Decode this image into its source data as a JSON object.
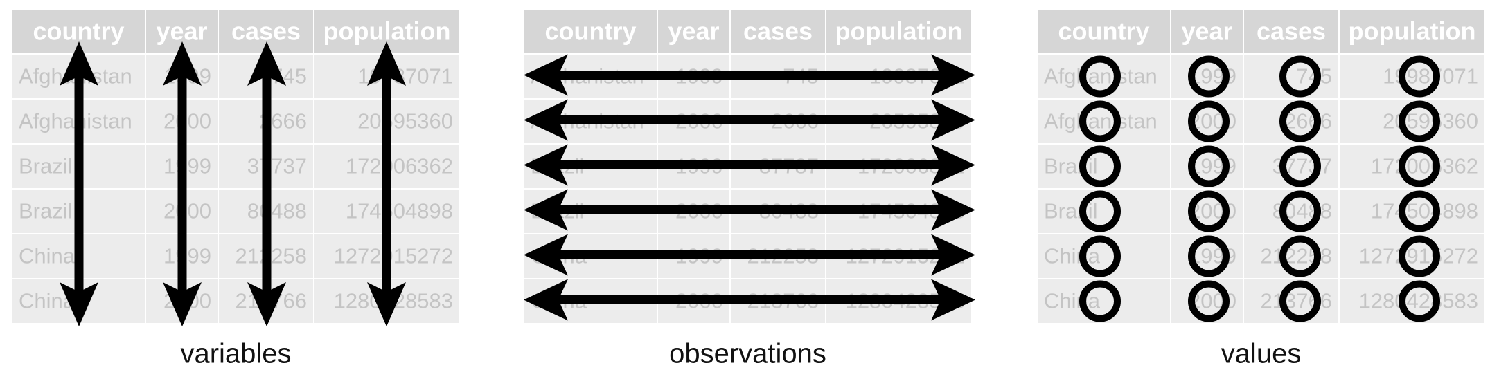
{
  "table": {
    "header": [
      "country",
      "year",
      "cases",
      "population"
    ],
    "rows": [
      [
        "Afghanistan",
        1999,
        745,
        19987071
      ],
      [
        "Afghanistan",
        2000,
        2666,
        20595360
      ],
      [
        "Brazil",
        1999,
        37737,
        172006362
      ],
      [
        "Brazil",
        2000,
        80488,
        174504898
      ],
      [
        "China",
        1999,
        212258,
        1272915272
      ],
      [
        "China",
        2000,
        213766,
        1280428583
      ]
    ]
  },
  "panels": [
    {
      "caption": "variables"
    },
    {
      "caption": "observations"
    },
    {
      "caption": "values"
    }
  ]
}
